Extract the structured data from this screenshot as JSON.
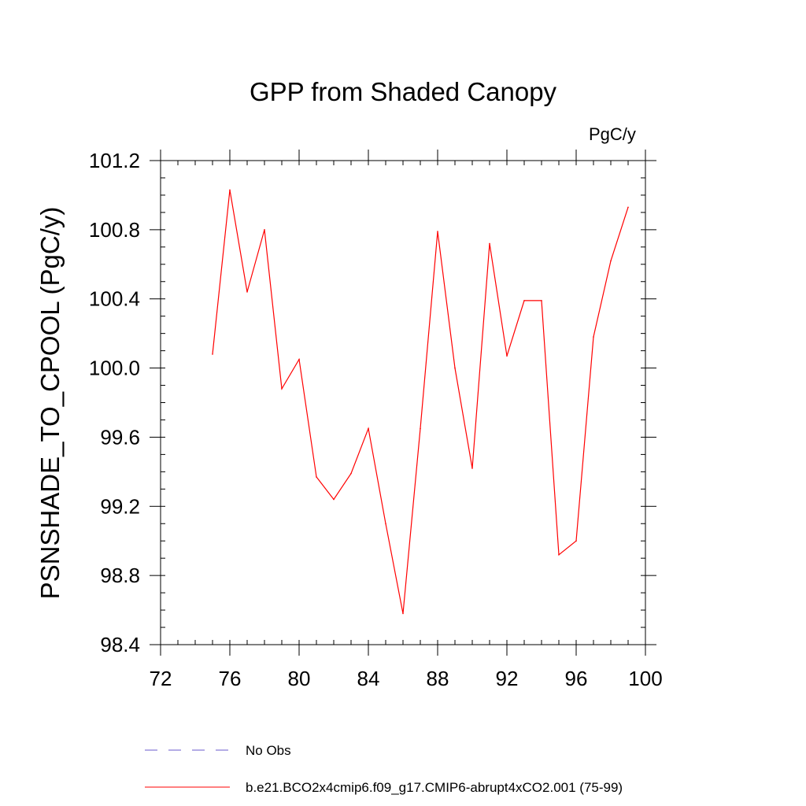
{
  "chart_data": {
    "type": "line",
    "title": "GPP from Shaded Canopy",
    "units_label": "PgC/y",
    "xlabel": "",
    "ylabel": "PSNSHADE_TO_CPOOL  (PgC/y)",
    "xlim": [
      72,
      100
    ],
    "ylim": [
      98.4,
      101.2
    ],
    "x_ticks": [
      72,
      76,
      80,
      84,
      88,
      92,
      96,
      100
    ],
    "x_tick_labels": [
      "72",
      "76",
      "80",
      "84",
      "88",
      "92",
      "96",
      "100"
    ],
    "y_ticks": [
      98.4,
      98.8,
      99.2,
      99.6,
      100.0,
      100.4,
      100.8,
      101.2
    ],
    "y_tick_labels": [
      "98.4",
      "98.8",
      "99.2",
      "99.6",
      "100.0",
      "100.4",
      "100.8",
      "101.2"
    ],
    "series": [
      {
        "name": "b.e21.BCO2x4cmip6.f09_g17.CMIP6-abrupt4xCO2.001 (75-99)",
        "color": "#ff0000",
        "style": "solid",
        "x": [
          75,
          76,
          77,
          78,
          79,
          80,
          81,
          82,
          83,
          84,
          85,
          86,
          87,
          88,
          89,
          90,
          91,
          92,
          93,
          94,
          95,
          96,
          97,
          98,
          99
        ],
        "y": [
          100.08,
          101.03,
          100.44,
          100.8,
          99.88,
          100.05,
          99.37,
          99.24,
          99.39,
          99.65,
          99.1,
          98.58,
          99.65,
          100.79,
          100.0,
          99.42,
          100.72,
          100.07,
          100.39,
          100.39,
          98.92,
          99.0,
          100.18,
          100.62,
          100.93
        ]
      }
    ],
    "legend": [
      {
        "label": "No Obs",
        "color": "#6a5acd",
        "style": "dashed"
      },
      {
        "label": "b.e21.BCO2x4cmip6.f09_g17.CMIP6-abrupt4xCO2.001 (75-99)",
        "color": "#ff0000",
        "style": "solid"
      }
    ]
  }
}
